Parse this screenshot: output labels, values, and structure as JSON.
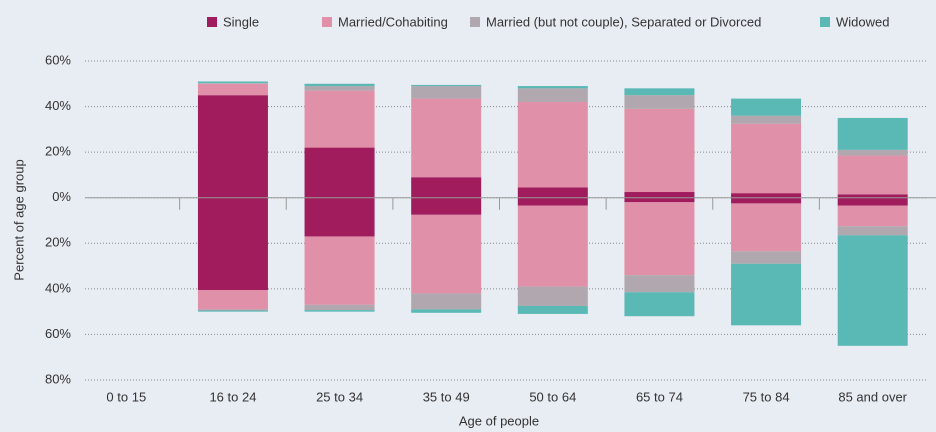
{
  "chart_data": {
    "type": "diverging_stacked_bar",
    "y_label": "Percent of age group",
    "x_label": "Age of people",
    "categories": [
      "0 to 15",
      "16 to 24",
      "25 to 34",
      "35 to 49",
      "50 to 64",
      "65 to 74",
      "75 to 84",
      "85 and over"
    ],
    "series": [
      {
        "name": "Single",
        "color": "#a01c5c",
        "values": [
          0,
          45,
          22,
          9,
          4.5,
          2.5,
          2,
          1.5
        ],
        "values_lower": [
          0,
          -40.5,
          -17,
          -7.5,
          -3.5,
          -2,
          -2.5,
          -3.5
        ]
      },
      {
        "name": "Married/Cohabiting",
        "color": "#e090a8",
        "values": [
          0,
          5,
          25,
          34.5,
          37.5,
          36.5,
          30.5,
          17
        ],
        "values_lower": [
          0,
          -8.5,
          -30,
          -34.5,
          -35.5,
          -32,
          -21,
          -9
        ]
      },
      {
        "name": "Married (but not couple), Separated or Divorced",
        "color": "#b0a8ae",
        "values": [
          0,
          0.3,
          2,
          5.5,
          6,
          6,
          3.5,
          2.5
        ],
        "values_lower": [
          0,
          -0.5,
          -2.3,
          -7,
          -8.5,
          -7.5,
          -5.5,
          -4
        ]
      },
      {
        "name": "Widowed",
        "color": "#5ab8b5",
        "values": [
          0,
          0.7,
          1,
          0.5,
          1,
          3,
          7.5,
          14
        ],
        "values_lower": [
          0,
          -0.5,
          -0.7,
          -1.5,
          -3.5,
          -10.5,
          -27,
          -48.5
        ]
      }
    ],
    "ylim": [
      -80,
      60
    ],
    "yticks": [
      {
        "value": -80,
        "label": "80%"
      },
      {
        "value": -60,
        "label": "60%"
      },
      {
        "value": -40,
        "label": "40%"
      },
      {
        "value": -20,
        "label": "20%"
      },
      {
        "value": 0,
        "label": "0%"
      },
      {
        "value": 20,
        "label": "20%"
      },
      {
        "value": 40,
        "label": "40%"
      },
      {
        "value": 60,
        "label": "60%"
      }
    ],
    "grid": true
  }
}
